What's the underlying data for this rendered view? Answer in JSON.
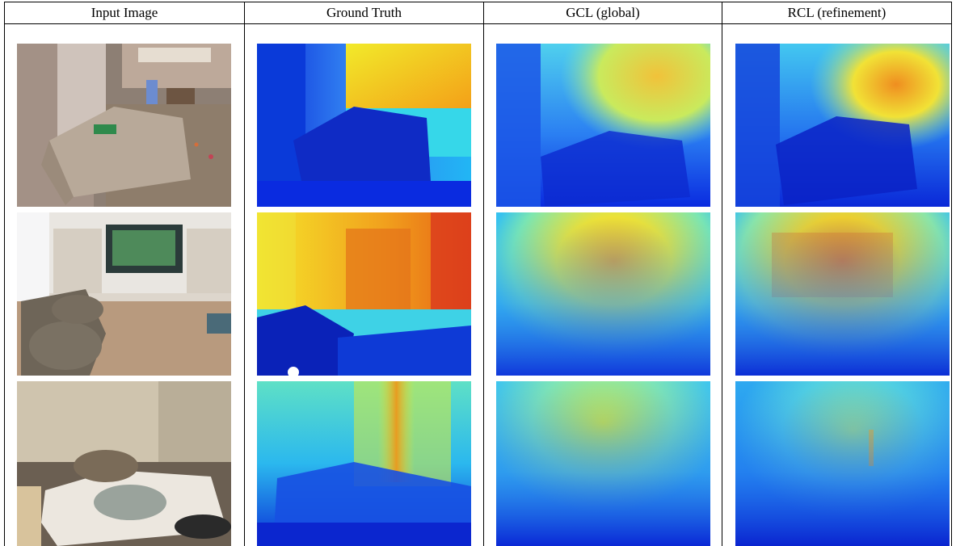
{
  "columns": [
    "Input Image",
    "Ground Truth",
    "GCL (global)",
    "RCL (refinement)"
  ],
  "rows": [
    {
      "scene": "playroom-ottoman",
      "input_colors": {
        "top": "#a4948a",
        "mid": "#8a7c70",
        "bottom": "#6a5e54",
        "object": "#b8a89a"
      },
      "depth_kind": "cool-foreground-warm-top-right"
    },
    {
      "scene": "living-room-tv",
      "input_colors": {
        "top": "#e9e9ea",
        "mid": "#c9b9a5",
        "bottom": "#9f8a78",
        "object": "#6a6258"
      },
      "depth_kind": "warm-center-cool-bottom"
    },
    {
      "scene": "bedroom",
      "input_colors": {
        "top": "#c9bfac",
        "mid": "#b7aa90",
        "bottom": "#5c5046",
        "object": "#ece7df"
      },
      "depth_kind": "cool-bottom-cyan-top"
    }
  ]
}
